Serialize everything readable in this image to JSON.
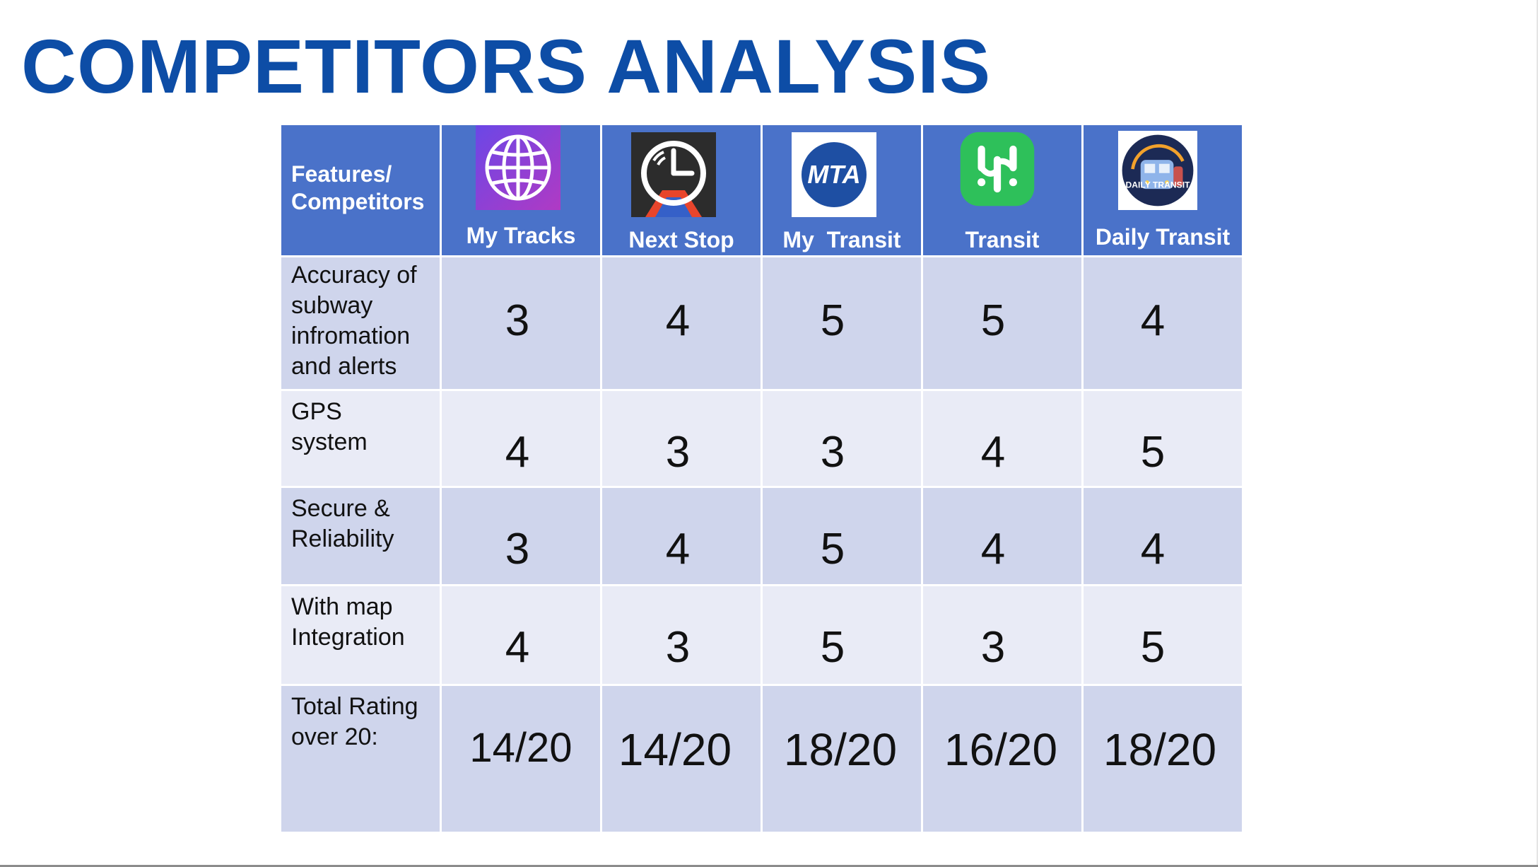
{
  "title": "COMPETITORS ANALYSIS",
  "table": {
    "corner_label": "Features/ Competitors",
    "competitors": [
      {
        "name": "My Tracks",
        "icon": "globe-icon"
      },
      {
        "name": "Next Stop",
        "icon": "clock-signal-icon"
      },
      {
        "name": "My  Transit",
        "icon": "mta-logo-icon",
        "logo_text": "MTA"
      },
      {
        "name": "Transit",
        "icon": "transit-app-icon"
      },
      {
        "name": "Daily Transit",
        "icon": "train-logo-icon",
        "logo_text": "DAILY TRANSIT"
      }
    ],
    "rows": [
      {
        "feature": "Accuracy of subway infromation and alerts",
        "scores": [
          "3",
          "4",
          "5",
          "5",
          "4"
        ]
      },
      {
        "feature": "GPS system",
        "scores": [
          "4",
          "3",
          "3",
          "4",
          "5"
        ]
      },
      {
        "feature": "Secure & Reliability",
        "scores": [
          "3",
          "4",
          "5",
          "4",
          "4"
        ]
      },
      {
        "feature": "With map Integration",
        "scores": [
          "4",
          "3",
          "5",
          "3",
          "5"
        ]
      },
      {
        "feature": "Total Rating over 20:",
        "scores": [
          "14/20",
          "14/20",
          "18/20",
          "16/20",
          "18/20"
        ]
      }
    ]
  },
  "colors": {
    "title": "#0d4da6",
    "header_bg": "#4a72c9",
    "row_dark": "#cfd5ec",
    "row_light": "#e9ebf6"
  }
}
